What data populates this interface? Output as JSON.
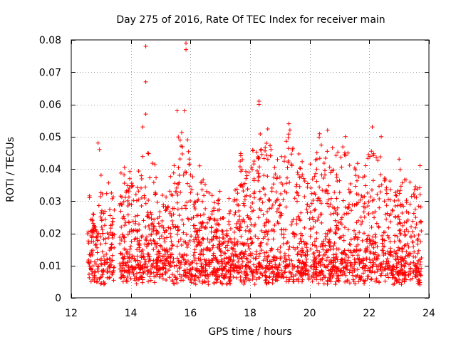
{
  "chart_data": {
    "type": "scatter",
    "title": "Day 275 of 2016, Rate Of TEC Index for receiver main",
    "xlabel": "GPS time / hours",
    "ylabel": "ROTI / TECUs",
    "xlim": [
      12,
      24
    ],
    "ylim": [
      0,
      0.08
    ],
    "xticks": [
      12,
      14,
      16,
      18,
      20,
      22,
      24
    ],
    "xtick_labels": [
      "12",
      "14",
      "16",
      "18",
      "20",
      "22",
      "24"
    ],
    "yticks": [
      0,
      0.01,
      0.02,
      0.03,
      0.04,
      0.05,
      0.06,
      0.07,
      0.08
    ],
    "ytick_labels": [
      "0",
      "0.01",
      "0.02",
      "0.03",
      "0.04",
      "0.05",
      "0.06",
      "0.07",
      "0.08"
    ],
    "grid": true,
    "marker": "+",
    "color": "#ff0000",
    "series": [
      {
        "name": "ROTI",
        "data_range": {
          "x_start": 12.55,
          "x_end": 23.75,
          "y_min": 0.002,
          "y_max": 0.079
        },
        "notable_points": [
          [
            12.9,
            0.048
          ],
          [
            12.95,
            0.046
          ],
          [
            13.0,
            0.038
          ],
          [
            14.5,
            0.078
          ],
          [
            14.5,
            0.067
          ],
          [
            14.5,
            0.057
          ],
          [
            14.4,
            0.053
          ],
          [
            15.55,
            0.058
          ],
          [
            15.85,
            0.079
          ],
          [
            15.85,
            0.077
          ],
          [
            15.8,
            0.058
          ],
          [
            15.9,
            0.049
          ],
          [
            18.3,
            0.061
          ],
          [
            18.3,
            0.06
          ],
          [
            19.3,
            0.054
          ],
          [
            20.6,
            0.052
          ],
          [
            21.2,
            0.05
          ],
          [
            22.1,
            0.053
          ],
          [
            22.4,
            0.05
          ],
          [
            23.0,
            0.043
          ],
          [
            23.7,
            0.041
          ]
        ],
        "envelope": [
          [
            12.6,
            0.028
          ],
          [
            12.8,
            0.024
          ],
          [
            13.0,
            0.03
          ],
          [
            13.2,
            0.034
          ],
          [
            13.4,
            0.028
          ],
          [
            13.7,
            0.04
          ],
          [
            14.0,
            0.036
          ],
          [
            14.3,
            0.042
          ],
          [
            14.6,
            0.045
          ],
          [
            14.9,
            0.033
          ],
          [
            15.2,
            0.03
          ],
          [
            15.5,
            0.046
          ],
          [
            15.8,
            0.05
          ],
          [
            16.0,
            0.042
          ],
          [
            16.3,
            0.04
          ],
          [
            16.6,
            0.032
          ],
          [
            16.9,
            0.03
          ],
          [
            17.2,
            0.026
          ],
          [
            17.5,
            0.03
          ],
          [
            17.7,
            0.045
          ],
          [
            18.0,
            0.038
          ],
          [
            18.2,
            0.045
          ],
          [
            18.5,
            0.052
          ],
          [
            18.8,
            0.046
          ],
          [
            19.0,
            0.04
          ],
          [
            19.3,
            0.05
          ],
          [
            19.6,
            0.044
          ],
          [
            19.9,
            0.04
          ],
          [
            20.2,
            0.044
          ],
          [
            20.5,
            0.048
          ],
          [
            20.8,
            0.042
          ],
          [
            21.1,
            0.046
          ],
          [
            21.4,
            0.04
          ],
          [
            21.7,
            0.038
          ],
          [
            22.0,
            0.046
          ],
          [
            22.3,
            0.044
          ],
          [
            22.6,
            0.034
          ],
          [
            22.9,
            0.036
          ],
          [
            23.2,
            0.036
          ],
          [
            23.5,
            0.03
          ],
          [
            23.75,
            0.038
          ]
        ]
      }
    ]
  }
}
